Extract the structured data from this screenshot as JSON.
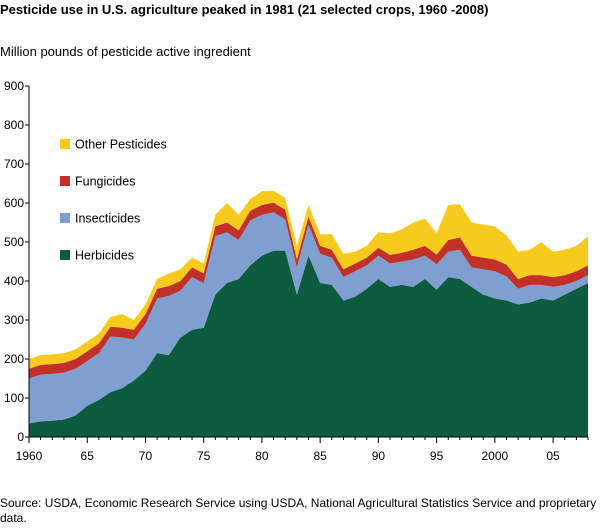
{
  "title": "Pesticide use in U.S. agriculture peaked in 1981 (21 selected crops, 1960 -2008)",
  "ylabel": "Million pounds of pesticide active ingredient",
  "source": "Source: USDA, Economic Research Service using USDA, National Agricultural Statistics Service and proprietary data.",
  "chart_data": {
    "type": "area",
    "stacked": true,
    "title": "Pesticide use in U.S. agriculture peaked in 1981 (21 selected crops, 1960 -2008)",
    "ylabel": "Million pounds of pesticide active ingredient",
    "xlabel": "",
    "xlim": [
      1960,
      2008
    ],
    "ylim": [
      0,
      900
    ],
    "x_tick_values": [
      1960,
      1965,
      1970,
      1975,
      1980,
      1985,
      1990,
      1995,
      2000,
      2005
    ],
    "x_tick_labels": [
      "1960",
      "65",
      "70",
      "75",
      "80",
      "85",
      "90",
      "95",
      "2000",
      "05"
    ],
    "y_ticks": [
      0,
      100,
      200,
      300,
      400,
      500,
      600,
      700,
      800,
      900
    ],
    "grid": false,
    "legend_position": "upper-left",
    "x": [
      1960,
      1961,
      1962,
      1963,
      1964,
      1965,
      1966,
      1967,
      1968,
      1969,
      1970,
      1971,
      1972,
      1973,
      1974,
      1975,
      1976,
      1977,
      1978,
      1979,
      1980,
      1981,
      1982,
      1983,
      1984,
      1985,
      1986,
      1987,
      1988,
      1989,
      1990,
      1991,
      1992,
      1993,
      1994,
      1995,
      1996,
      1997,
      1998,
      1999,
      2000,
      2001,
      2002,
      2003,
      2004,
      2005,
      2006,
      2007,
      2008
    ],
    "series": [
      {
        "name": "Herbicides",
        "color": "#0e5c3f",
        "values": [
          35,
          40,
          42,
          45,
          55,
          80,
          95,
          115,
          125,
          145,
          170,
          215,
          210,
          255,
          275,
          280,
          365,
          395,
          405,
          440,
          465,
          478,
          478,
          365,
          465,
          395,
          390,
          350,
          360,
          380,
          405,
          385,
          390,
          385,
          405,
          378,
          410,
          405,
          385,
          365,
          355,
          350,
          340,
          345,
          355,
          350,
          365,
          380,
          395
        ]
      },
      {
        "name": "Insecticides",
        "color": "#7f9fd0",
        "values": [
          115,
          120,
          120,
          120,
          120,
          115,
          120,
          143,
          130,
          105,
          120,
          140,
          152,
          120,
          135,
          115,
          150,
          130,
          100,
          115,
          105,
          98,
          80,
          70,
          80,
          75,
          70,
          60,
          65,
          60,
          60,
          60,
          60,
          70,
          60,
          65,
          65,
          75,
          50,
          65,
          70,
          62,
          40,
          45,
          35,
          35,
          25,
          20,
          20
        ]
      },
      {
        "name": "Fungicides",
        "color": "#c2302a",
        "values": [
          25,
          25,
          25,
          25,
          25,
          25,
          25,
          25,
          25,
          25,
          25,
          25,
          25,
          25,
          25,
          25,
          25,
          25,
          25,
          25,
          25,
          25,
          25,
          20,
          20,
          20,
          20,
          20,
          20,
          20,
          20,
          22,
          22,
          25,
          25,
          25,
          30,
          32,
          30,
          30,
          30,
          30,
          25,
          25,
          25,
          25,
          25,
          25,
          25
        ]
      },
      {
        "name": "Other Pesticides",
        "color": "#f7cb1e",
        "values": [
          25,
          25,
          25,
          25,
          25,
          25,
          25,
          25,
          35,
          25,
          25,
          25,
          32,
          30,
          25,
          25,
          30,
          50,
          40,
          30,
          35,
          30,
          30,
          35,
          30,
          30,
          40,
          40,
          30,
          30,
          40,
          55,
          60,
          70,
          70,
          55,
          90,
          85,
          85,
          85,
          85,
          75,
          70,
          65,
          85,
          65,
          65,
          65,
          75
        ]
      }
    ]
  }
}
